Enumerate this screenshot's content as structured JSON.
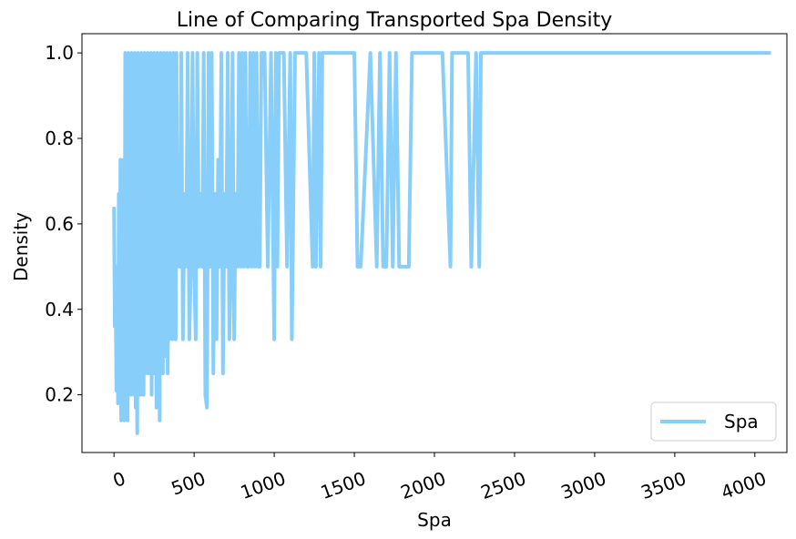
{
  "chart_data": {
    "type": "line",
    "title": "Line of Comparing Transported Spa Density",
    "xlabel": "Spa",
    "ylabel": "Density",
    "xlim": [
      -200,
      4200
    ],
    "ylim": [
      0.065,
      1.045
    ],
    "xticks": [
      0,
      500,
      1000,
      1500,
      2000,
      2500,
      3000,
      3500,
      4000
    ],
    "xtick_labels": [
      "0",
      "500",
      "1000",
      "1500",
      "2000",
      "2500",
      "3000",
      "3500",
      "4000"
    ],
    "yticks": [
      0.2,
      0.4,
      0.6,
      0.8,
      1.0
    ],
    "ytick_labels": [
      "0.2",
      "0.4",
      "0.6",
      "0.8",
      "1.0"
    ],
    "legend": {
      "position": "lower-right",
      "entries": [
        "Spa"
      ]
    },
    "grid": false,
    "series": [
      {
        "name": "Spa",
        "color": "#87CEFA",
        "x": [
          0,
          5,
          10,
          15,
          20,
          25,
          30,
          35,
          40,
          45,
          50,
          55,
          60,
          65,
          70,
          75,
          80,
          85,
          90,
          95,
          100,
          105,
          110,
          115,
          120,
          125,
          130,
          135,
          140,
          145,
          150,
          155,
          160,
          165,
          170,
          175,
          180,
          185,
          190,
          195,
          200,
          205,
          210,
          215,
          220,
          225,
          230,
          235,
          240,
          245,
          250,
          255,
          260,
          265,
          270,
          275,
          280,
          285,
          290,
          295,
          300,
          305,
          310,
          315,
          320,
          325,
          330,
          335,
          340,
          345,
          350,
          355,
          360,
          365,
          370,
          375,
          380,
          385,
          390,
          395,
          400,
          410,
          420,
          430,
          440,
          450,
          460,
          470,
          480,
          490,
          500,
          510,
          520,
          530,
          540,
          550,
          560,
          570,
          580,
          590,
          600,
          610,
          620,
          630,
          640,
          650,
          660,
          670,
          680,
          690,
          700,
          710,
          720,
          730,
          740,
          750,
          760,
          770,
          780,
          790,
          800,
          810,
          820,
          830,
          840,
          850,
          860,
          870,
          880,
          890,
          900,
          910,
          920,
          940,
          960,
          980,
          1000,
          1010,
          1020,
          1030,
          1040,
          1060,
          1080,
          1100,
          1110,
          1130,
          1150,
          1200,
          1240,
          1250,
          1260,
          1280,
          1290,
          1300,
          1310,
          1320,
          1400,
          1500,
          1520,
          1540,
          1600,
          1640,
          1660,
          1680,
          1700,
          1720,
          1740,
          1760,
          1780,
          1800,
          1820,
          1840,
          1860,
          1880,
          1900,
          1950,
          2000,
          2050,
          2100,
          2110,
          2200,
          2210,
          2230,
          2260,
          2280,
          2290,
          2300,
          2400,
          2500,
          3000,
          3500,
          4000,
          4100
        ],
        "y": [
          0.64,
          0.36,
          0.45,
          0.21,
          0.5,
          0.18,
          0.67,
          0.2,
          0.75,
          0.14,
          0.5,
          0.33,
          0.75,
          0.14,
          1.0,
          0.2,
          0.5,
          0.14,
          1.0,
          0.25,
          0.67,
          0.2,
          1.0,
          0.33,
          0.6,
          0.2,
          1.0,
          0.17,
          0.5,
          0.11,
          1.0,
          0.25,
          0.75,
          0.2,
          1.0,
          0.33,
          0.5,
          0.2,
          1.0,
          0.25,
          0.67,
          0.33,
          1.0,
          0.25,
          0.5,
          0.33,
          1.0,
          0.2,
          0.75,
          0.25,
          1.0,
          0.33,
          0.5,
          0.17,
          1.0,
          0.25,
          0.67,
          0.14,
          1.0,
          0.33,
          0.5,
          0.25,
          1.0,
          0.29,
          0.67,
          0.33,
          1.0,
          0.25,
          0.5,
          0.33,
          1.0,
          0.4,
          0.75,
          0.33,
          1.0,
          0.5,
          0.67,
          0.33,
          1.0,
          0.5,
          0.75,
          0.5,
          1.0,
          0.33,
          0.67,
          0.5,
          1.0,
          0.33,
          0.5,
          1.0,
          0.5,
          0.33,
          1.0,
          0.5,
          0.67,
          0.5,
          1.0,
          0.2,
          0.17,
          1.0,
          0.5,
          1.0,
          0.25,
          0.67,
          0.33,
          0.75,
          0.5,
          1.0,
          0.25,
          0.67,
          0.5,
          1.0,
          0.33,
          0.5,
          1.0,
          0.33,
          0.67,
          0.5,
          1.0,
          0.5,
          1.0,
          0.5,
          1.0,
          0.5,
          0.5,
          1.0,
          0.5,
          1.0,
          0.5,
          1.0,
          0.5,
          0.5,
          1.0,
          1.0,
          0.5,
          1.0,
          0.33,
          1.0,
          0.5,
          1.0,
          1.0,
          1.0,
          0.5,
          1.0,
          0.33,
          1.0,
          1.0,
          1.0,
          0.5,
          1.0,
          0.5,
          1.0,
          0.5,
          1.0,
          1.0,
          1.0,
          1.0,
          1.0,
          0.5,
          0.5,
          1.0,
          0.5,
          1.0,
          0.5,
          0.5,
          1.0,
          0.5,
          1.0,
          0.5,
          0.5,
          0.5,
          0.5,
          1.0,
          1.0,
          1.0,
          1.0,
          1.0,
          1.0,
          0.5,
          1.0,
          1.0,
          1.0,
          0.5,
          1.0,
          0.5,
          1.0,
          1.0,
          1.0,
          1.0,
          1.0,
          1.0,
          1.0,
          1.0
        ]
      }
    ]
  }
}
